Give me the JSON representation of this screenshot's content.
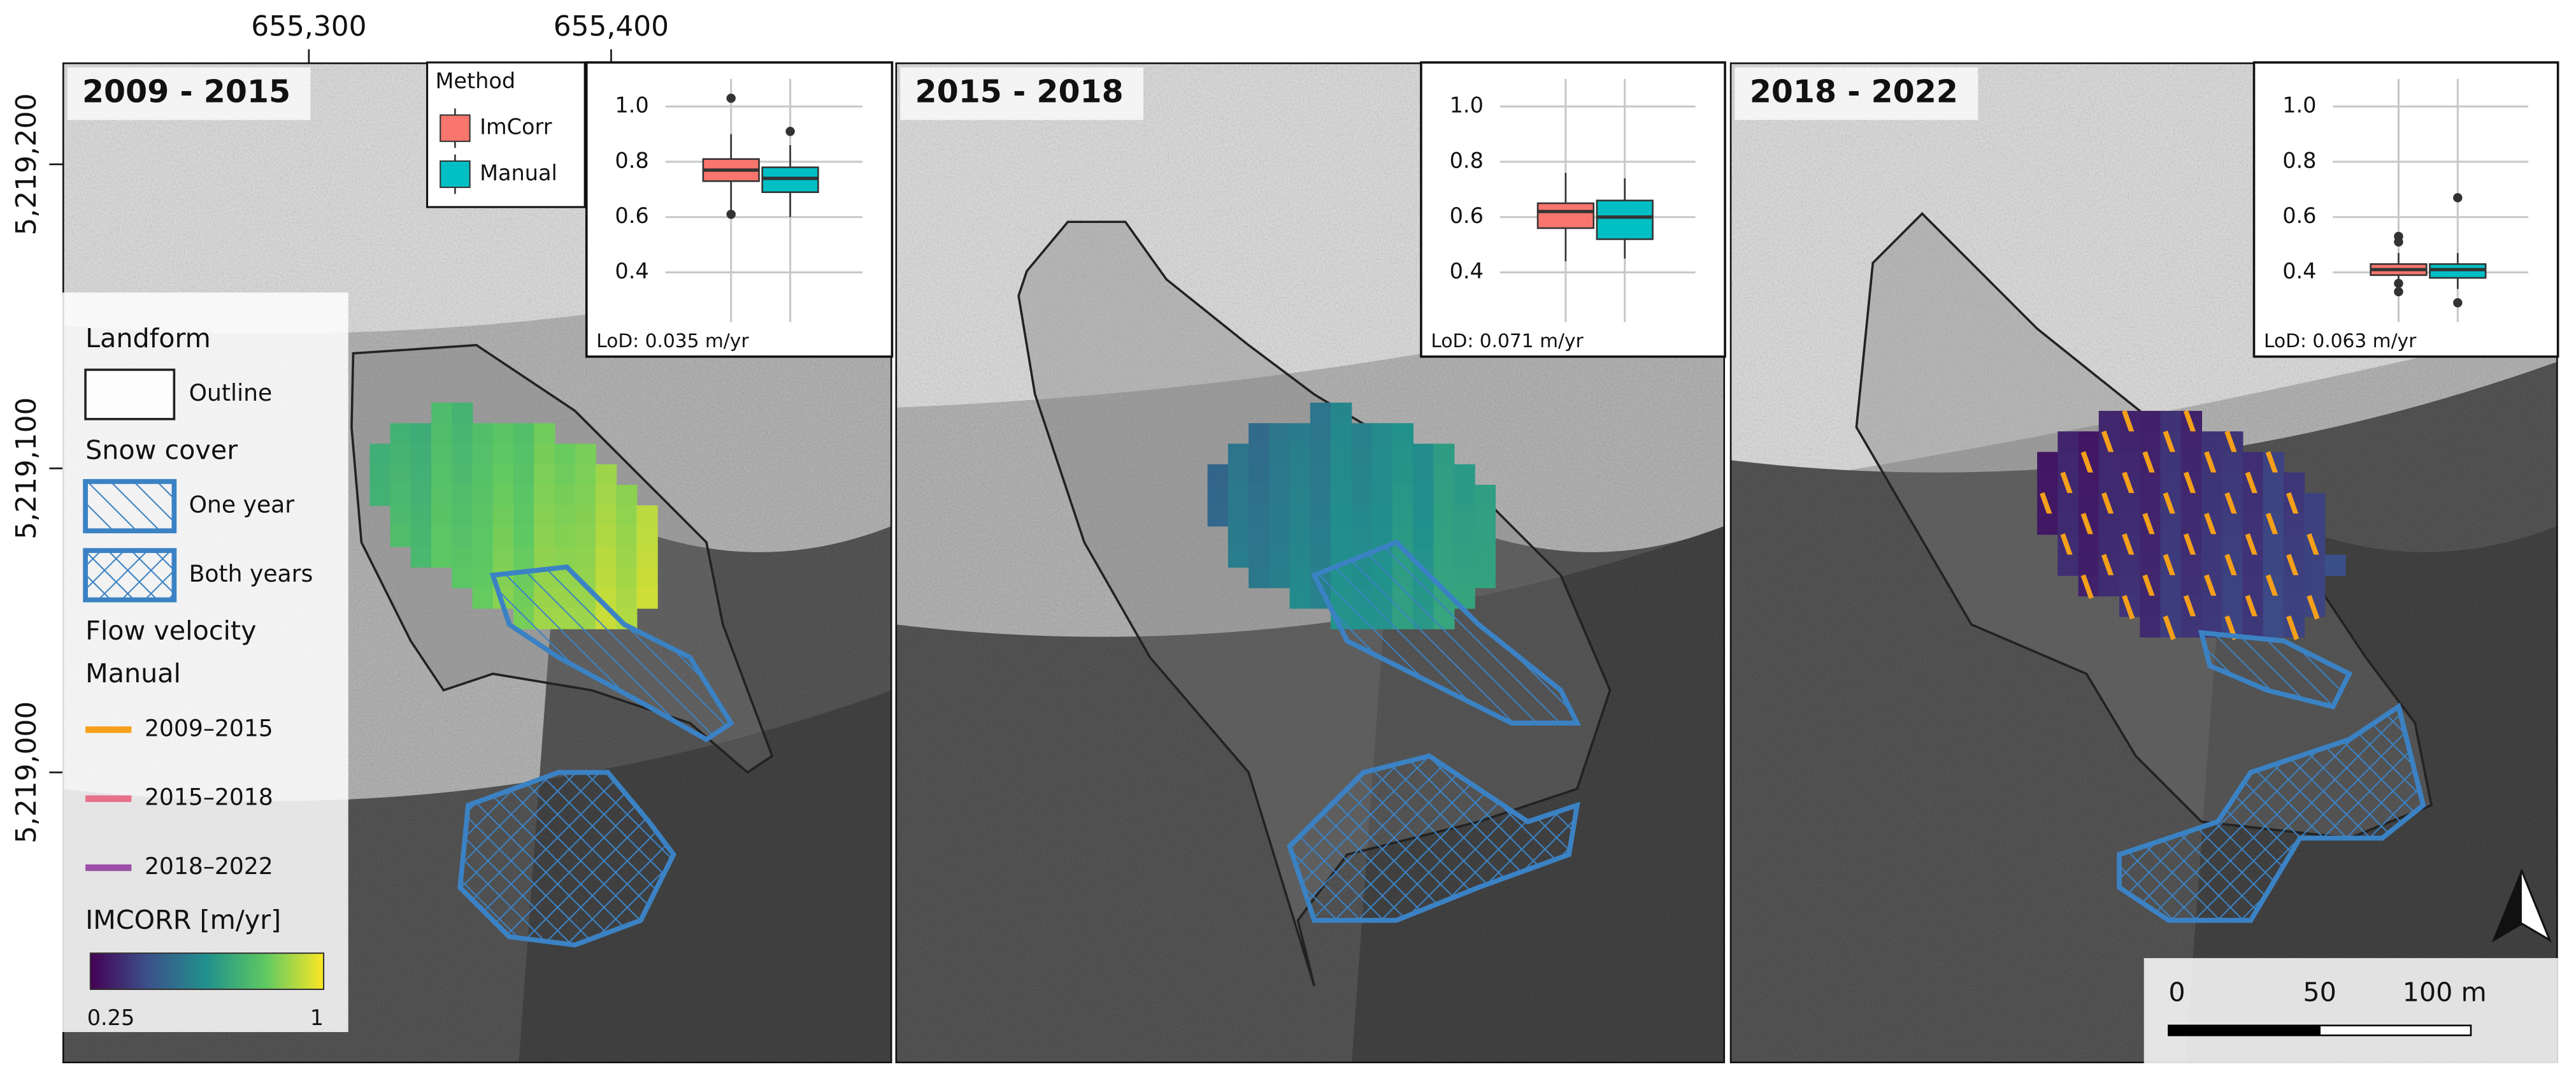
{
  "map": {
    "xticks": [
      {
        "value": 655300,
        "label": "655,300"
      },
      {
        "value": 655400,
        "label": "655,400"
      }
    ],
    "yticks": [
      {
        "value": 5219200,
        "label": "5,219,200"
      },
      {
        "value": 5219100,
        "label": "5,219,100"
      },
      {
        "value": 5219000,
        "label": "5,219,000"
      }
    ],
    "scale_bar": {
      "ticks": [
        0,
        50,
        {
          "value": 100,
          "label": "100 m"
        }
      ]
    }
  },
  "panels": [
    {
      "title": "2009 - 2015"
    },
    {
      "title": "2015 - 2018"
    },
    {
      "title": "2018 - 2022"
    }
  ],
  "method_legend": {
    "title": "Method",
    "items": [
      {
        "name": "ImCorr",
        "color": "#f8766d"
      },
      {
        "name": "Manual",
        "color": "#00bfc4"
      }
    ]
  },
  "legend": {
    "landform": {
      "title": "Landform",
      "items": [
        "Outline"
      ]
    },
    "snow": {
      "title": "Snow cover",
      "items": [
        "One year",
        "Both years"
      ]
    },
    "flow": {
      "title": "Flow velocity",
      "subtitle": "Manual",
      "items": [
        {
          "label": "2009–2015",
          "color": "#f5a01a"
        },
        {
          "label": "2015–2018",
          "color": "#e8708a"
        },
        {
          "label": "2018–2022",
          "color": "#9b4fa8"
        }
      ]
    },
    "colorbar": {
      "title": "IMCORR [m/yr]",
      "min": 0.25,
      "max": 1
    }
  },
  "chart_data": [
    {
      "type": "box",
      "annotation": "LoD: 0.035 m/yr",
      "ylim": [
        0.22,
        1.1
      ],
      "yticks": [
        {
          "value": 1,
          "label": "1.0"
        },
        0.8,
        0.6,
        0.4
      ],
      "grid": true,
      "series": [
        {
          "whislo": 0.62,
          "q1": 0.73,
          "med": 0.77,
          "q3": 0.81,
          "whishi": 0.9,
          "fliers": [
            1.03,
            0.61
          ]
        },
        {
          "whislo": 0.6,
          "q1": 0.69,
          "med": 0.74,
          "q3": 0.78,
          "whishi": 0.86,
          "fliers": [
            0.91
          ]
        }
      ]
    },
    {
      "type": "box",
      "annotation": "LoD: 0.071 m/yr",
      "ylim": [
        0.22,
        1.1
      ],
      "yticks": [
        {
          "value": 1,
          "label": "1.0"
        },
        0.8,
        0.6,
        0.4
      ],
      "grid": true,
      "series": [
        {
          "whislo": 0.44,
          "q1": 0.56,
          "med": 0.62,
          "q3": 0.65,
          "whishi": 0.76,
          "fliers": []
        },
        {
          "whislo": 0.45,
          "q1": 0.52,
          "med": 0.6,
          "q3": 0.66,
          "whishi": 0.74,
          "fliers": []
        }
      ]
    },
    {
      "type": "box",
      "annotation": "LoD: 0.063 m/yr",
      "ylim": [
        0.22,
        1.1
      ],
      "yticks": [
        {
          "value": 1,
          "label": "1.0"
        },
        0.8,
        0.6,
        0.4
      ],
      "grid": true,
      "series": [
        {
          "whislo": 0.35,
          "q1": 0.39,
          "med": 0.41,
          "q3": 0.43,
          "whishi": 0.47,
          "fliers": [
            0.53,
            0.51,
            0.36,
            0.33
          ]
        },
        {
          "whislo": 0.34,
          "q1": 0.38,
          "med": 0.41,
          "q3": 0.43,
          "whishi": 0.47,
          "fliers": [
            0.67,
            0.29
          ]
        }
      ]
    }
  ]
}
